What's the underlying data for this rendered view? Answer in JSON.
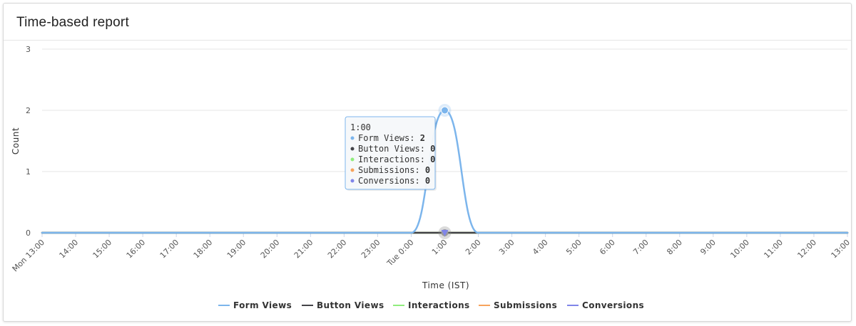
{
  "report": {
    "title": "Time-based report"
  },
  "chart_data": {
    "type": "line",
    "title": "",
    "xlabel": "Time (IST)",
    "ylabel": "Count",
    "ylim": [
      0,
      3
    ],
    "yticks": [
      0,
      1,
      2,
      3
    ],
    "grid": true,
    "legend_position": "bottom",
    "categories": [
      "Mon 13:00",
      "14:00",
      "15:00",
      "16:00",
      "17:00",
      "18:00",
      "19:00",
      "20:00",
      "21:00",
      "22:00",
      "23:00",
      "Tue 0:00",
      "1:00",
      "2:00",
      "3:00",
      "4:00",
      "5:00",
      "6:00",
      "7:00",
      "8:00",
      "9:00",
      "10:00",
      "11:00",
      "12:00",
      "13:00"
    ],
    "series": [
      {
        "name": "Form Views",
        "color": "#7cb5ec",
        "values": [
          0,
          0,
          0,
          0,
          0,
          0,
          0,
          0,
          0,
          0,
          0,
          0,
          2,
          0,
          0,
          0,
          0,
          0,
          0,
          0,
          0,
          0,
          0,
          0,
          0
        ]
      },
      {
        "name": "Button Views",
        "color": "#434348",
        "values": [
          0,
          0,
          0,
          0,
          0,
          0,
          0,
          0,
          0,
          0,
          0,
          0,
          0,
          0,
          0,
          0,
          0,
          0,
          0,
          0,
          0,
          0,
          0,
          0,
          0
        ]
      },
      {
        "name": "Interactions",
        "color": "#90ed7d",
        "values": [
          0,
          0,
          0,
          0,
          0,
          0,
          0,
          0,
          0,
          0,
          0,
          0,
          0,
          0,
          0,
          0,
          0,
          0,
          0,
          0,
          0,
          0,
          0,
          0,
          0
        ]
      },
      {
        "name": "Submissions",
        "color": "#f7a35c",
        "values": [
          0,
          0,
          0,
          0,
          0,
          0,
          0,
          0,
          0,
          0,
          0,
          0,
          0,
          0,
          0,
          0,
          0,
          0,
          0,
          0,
          0,
          0,
          0,
          0,
          0
        ]
      },
      {
        "name": "Conversions",
        "color": "#8085e9",
        "values": [
          0,
          0,
          0,
          0,
          0,
          0,
          0,
          0,
          0,
          0,
          0,
          0,
          0,
          0,
          0,
          0,
          0,
          0,
          0,
          0,
          0,
          0,
          0,
          0,
          0
        ]
      }
    ],
    "tooltip": {
      "header": "1:00",
      "rows": [
        {
          "label": "Form Views: ",
          "value": "2"
        },
        {
          "label": "Button Views: ",
          "value": "0"
        },
        {
          "label": "Interactions: ",
          "value": "0"
        },
        {
          "label": "Submissions: ",
          "value": "0"
        },
        {
          "label": "Conversions: ",
          "value": "0"
        }
      ]
    }
  }
}
